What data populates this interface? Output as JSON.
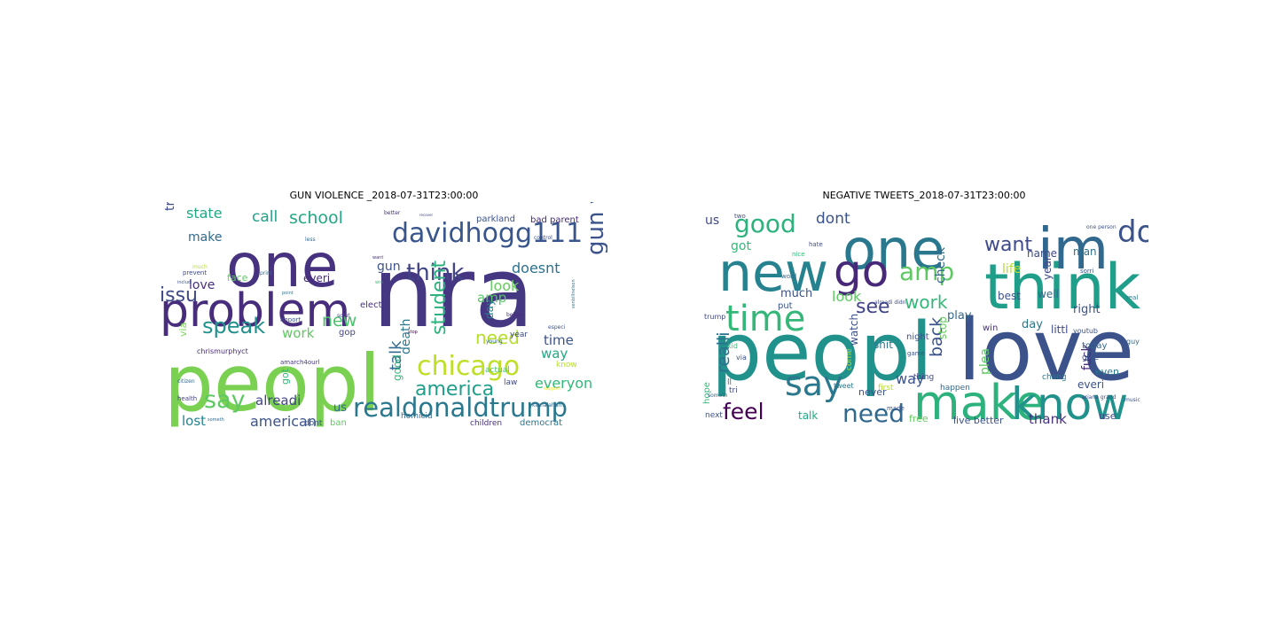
{
  "figure": {
    "panels": [
      {
        "title": "GUN VIOLENCE _2018-07-31T23:00:00",
        "words": [
          {
            "text": "nra",
            "weight": 100,
            "color": "#453781"
          },
          {
            "text": "peopl",
            "weight": 78,
            "color": "#7ad151"
          },
          {
            "text": "one",
            "weight": 70,
            "color": "#46327e"
          },
          {
            "text": "problem",
            "weight": 55,
            "color": "#472d7b"
          },
          {
            "text": "davidhogg111",
            "weight": 32,
            "color": "#39568c"
          },
          {
            "text": "realdonaldtrump",
            "weight": 30,
            "color": "#2a788e"
          },
          {
            "text": "chicago",
            "weight": 30,
            "color": "#bddf26"
          },
          {
            "text": "gun violenc",
            "weight": 26,
            "color": "#3b528b"
          },
          {
            "text": "think",
            "weight": 26,
            "color": "#414487"
          },
          {
            "text": "say",
            "weight": 24,
            "color": "#5ec962"
          },
          {
            "text": "speak",
            "weight": 22,
            "color": "#21918c"
          },
          {
            "text": "student",
            "weight": 20,
            "color": "#2db27d"
          },
          {
            "text": "america",
            "weight": 20,
            "color": "#1f9e89"
          },
          {
            "text": "issu",
            "weight": 20,
            "color": "#3e4989"
          },
          {
            "text": "need",
            "weight": 18,
            "color": "#b5de2b"
          },
          {
            "text": "new",
            "weight": 18,
            "color": "#4ac16d"
          },
          {
            "text": "school",
            "weight": 17,
            "color": "#22a884"
          },
          {
            "text": "talk",
            "weight": 16,
            "color": "#31688e"
          },
          {
            "text": "everyon",
            "weight": 16,
            "color": "#35b779"
          },
          {
            "text": "american",
            "weight": 15,
            "color": "#3b528b"
          },
          {
            "text": "call",
            "weight": 15,
            "color": "#1fa187"
          },
          {
            "text": "look",
            "weight": 15,
            "color": "#65cb5e"
          },
          {
            "text": "doesnt",
            "weight": 14,
            "color": "#2c728e"
          },
          {
            "text": "state",
            "weight": 14,
            "color": "#22a884"
          },
          {
            "text": "alreadi",
            "weight": 14,
            "color": "#414487"
          },
          {
            "text": "amp",
            "weight": 14,
            "color": "#56c667"
          },
          {
            "text": "lost",
            "weight": 14,
            "color": "#26828e"
          },
          {
            "text": "time",
            "weight": 14,
            "color": "#3b528b"
          },
          {
            "text": "make",
            "weight": 13,
            "color": "#30698e"
          },
          {
            "text": "love",
            "weight": 13,
            "color": "#472f7d"
          },
          {
            "text": "trump",
            "weight": 13,
            "color": "#3e4989"
          },
          {
            "text": "way",
            "weight": 13,
            "color": "#22a884"
          },
          {
            "text": "work",
            "weight": 12,
            "color": "#5ec962"
          },
          {
            "text": "gun",
            "weight": 12,
            "color": "#3b528b"
          },
          {
            "text": "death",
            "weight": 12,
            "color": "#2a788e"
          },
          {
            "text": "us",
            "weight": 11,
            "color": "#31688e"
          },
          {
            "text": "day",
            "weight": 11,
            "color": "#26828e"
          },
          {
            "text": "everi",
            "weight": 11,
            "color": "#472d7b"
          },
          {
            "text": "good",
            "weight": 10,
            "color": "#35b779"
          },
          {
            "text": "via",
            "weight": 10,
            "color": "#7ad151"
          },
          {
            "text": "face",
            "weight": 10,
            "color": "#5ec962"
          },
          {
            "text": "got",
            "weight": 10,
            "color": "#35b779"
          },
          {
            "text": "parkland",
            "weight": 9,
            "color": "#3b528b"
          },
          {
            "text": "bad parent",
            "weight": 9,
            "color": "#482878"
          },
          {
            "text": "actual",
            "weight": 9,
            "color": "#4ac16d"
          },
          {
            "text": "law",
            "weight": 9,
            "color": "#3e4989"
          },
          {
            "text": "homicid",
            "weight": 9,
            "color": "#31688e"
          },
          {
            "text": "democrat",
            "weight": 9,
            "color": "#2a788e"
          },
          {
            "text": "children",
            "weight": 9,
            "color": "#46327e"
          },
          {
            "text": "ban",
            "weight": 9,
            "color": "#5ec962"
          },
          {
            "text": "gop",
            "weight": 9,
            "color": "#414487"
          },
          {
            "text": "dont",
            "weight": 9,
            "color": "#3b528b"
          },
          {
            "text": "know",
            "weight": 8,
            "color": "#b5de2b"
          },
          {
            "text": "year",
            "weight": 8,
            "color": "#3e4989"
          },
          {
            "text": "elect",
            "weight": 8,
            "color": "#46327e"
          },
          {
            "text": "chrismurphyct",
            "weight": 8,
            "color": "#472d7b"
          },
          {
            "text": "amarch4ourl",
            "weight": 7,
            "color": "#453781"
          },
          {
            "text": "import",
            "weight": 7,
            "color": "#3b528b"
          },
          {
            "text": "health",
            "weight": 7,
            "color": "#433e85"
          },
          {
            "text": "prevent",
            "weight": 7,
            "color": "#3e4989"
          },
          {
            "text": "citizen",
            "weight": 6,
            "color": "#31688e"
          },
          {
            "text": "control",
            "weight": 6,
            "color": "#3b528b"
          },
          {
            "text": "better",
            "weight": 6,
            "color": "#472d7b"
          },
          {
            "text": "less",
            "weight": 6,
            "color": "#31688e"
          },
          {
            "text": "much",
            "weight": 6,
            "color": "#b5de2b"
          },
          {
            "text": "print",
            "weight": 6,
            "color": "#2c728e"
          },
          {
            "text": "kamalaharri",
            "weight": 6,
            "color": "#31688e"
          },
          {
            "text": "especi",
            "weight": 6,
            "color": "#3b528b"
          },
          {
            "text": "believ",
            "weight": 6,
            "color": "#472d7b"
          },
          {
            "text": "solut",
            "weight": 6,
            "color": "#3e4989"
          },
          {
            "text": "win",
            "weight": 5,
            "color": "#35b779"
          },
          {
            "text": "support",
            "weight": 5,
            "color": "#fde725"
          },
          {
            "text": "someth",
            "weight": 5,
            "color": "#31688e"
          },
          {
            "text": "includ",
            "weight": 5,
            "color": "#3b528b"
          },
          {
            "text": "stop",
            "weight": 5,
            "color": "#440154"
          },
          {
            "text": "point",
            "weight": 5,
            "color": "#2a788e"
          },
          {
            "text": "young",
            "weight": 6,
            "color": "#31688e"
          },
          {
            "text": "want",
            "weight": 5,
            "color": "#472d7b"
          },
          {
            "text": "senbillnelson",
            "weight": 5,
            "color": "#2a788e"
          },
          {
            "text": "recover",
            "weight": 4,
            "color": "#3e4989"
          }
        ]
      },
      {
        "title": "NEGATIVE TWEETS_2018-07-31T23:00:00",
        "words": [
          {
            "text": "love",
            "weight": 100,
            "color": "#3b528b"
          },
          {
            "text": "peopl",
            "weight": 95,
            "color": "#21918c"
          },
          {
            "text": "think",
            "weight": 72,
            "color": "#1f9e89"
          },
          {
            "text": "one",
            "weight": 68,
            "color": "#2a788e"
          },
          {
            "text": "im",
            "weight": 66,
            "color": "#31688e"
          },
          {
            "text": "new",
            "weight": 62,
            "color": "#26828e"
          },
          {
            "text": "make",
            "weight": 58,
            "color": "#2db27d"
          },
          {
            "text": "know",
            "weight": 52,
            "color": "#21918c"
          },
          {
            "text": "go",
            "weight": 50,
            "color": "#482878"
          },
          {
            "text": "time",
            "weight": 42,
            "color": "#35b779"
          },
          {
            "text": "say",
            "weight": 40,
            "color": "#2a788e"
          },
          {
            "text": "don",
            "weight": 34,
            "color": "#3b528b"
          },
          {
            "text": "good",
            "weight": 30,
            "color": "#2db27d"
          },
          {
            "text": "amp",
            "weight": 28,
            "color": "#5ec962"
          },
          {
            "text": "need",
            "weight": 28,
            "color": "#31688e"
          },
          {
            "text": "feel",
            "weight": 26,
            "color": "#440154"
          },
          {
            "text": "want",
            "weight": 24,
            "color": "#3e4989"
          },
          {
            "text": "see",
            "weight": 24,
            "color": "#414487"
          },
          {
            "text": "back",
            "weight": 20,
            "color": "#3b528b"
          },
          {
            "text": "work",
            "weight": 20,
            "color": "#35b779"
          },
          {
            "text": "realli",
            "weight": 20,
            "color": "#2c728e"
          },
          {
            "text": "dont",
            "weight": 18,
            "color": "#3b528b"
          },
          {
            "text": "look",
            "weight": 16,
            "color": "#5ec962"
          },
          {
            "text": "thank",
            "weight": 16,
            "color": "#46327e"
          },
          {
            "text": "way",
            "weight": 16,
            "color": "#3b528b"
          },
          {
            "text": "life",
            "weight": 16,
            "color": "#b5de2b"
          },
          {
            "text": "check",
            "weight": 14,
            "color": "#31688e"
          },
          {
            "text": "fuck",
            "weight": 14,
            "color": "#472d7b"
          },
          {
            "text": "plea",
            "weight": 14,
            "color": "#5ec962"
          },
          {
            "text": "got",
            "weight": 14,
            "color": "#35b779"
          },
          {
            "text": "us",
            "weight": 14,
            "color": "#3e4989"
          },
          {
            "text": "much",
            "weight": 13,
            "color": "#3b528b"
          },
          {
            "text": "play",
            "weight": 13,
            "color": "#31688e"
          },
          {
            "text": "day",
            "weight": 13,
            "color": "#2a788e"
          },
          {
            "text": "right",
            "weight": 13,
            "color": "#3b528b"
          },
          {
            "text": "talk",
            "weight": 12,
            "color": "#22a884"
          },
          {
            "text": "well",
            "weight": 12,
            "color": "#31688e"
          },
          {
            "text": "name",
            "weight": 12,
            "color": "#3e4989"
          },
          {
            "text": "man",
            "weight": 12,
            "color": "#2c728e"
          },
          {
            "text": "shit",
            "weight": 12,
            "color": "#2a788e"
          },
          {
            "text": "best",
            "weight": 12,
            "color": "#3b528b"
          },
          {
            "text": "stop",
            "weight": 12,
            "color": "#65cb5e"
          },
          {
            "text": "littl",
            "weight": 12,
            "color": "#3e4989"
          },
          {
            "text": "watch",
            "weight": 12,
            "color": "#3b528b"
          },
          {
            "text": "year",
            "weight": 12,
            "color": "#3e4989"
          },
          {
            "text": "everi",
            "weight": 12,
            "color": "#3b528b"
          },
          {
            "text": "even",
            "weight": 11,
            "color": "#2a788e"
          },
          {
            "text": "live better",
            "weight": 11,
            "color": "#3b528b"
          },
          {
            "text": "use",
            "weight": 11,
            "color": "#3e4989"
          },
          {
            "text": "free",
            "weight": 11,
            "color": "#65cb5e"
          },
          {
            "text": "never",
            "weight": 11,
            "color": "#3b528b"
          },
          {
            "text": "hope",
            "weight": 10,
            "color": "#35b779"
          },
          {
            "text": "today",
            "weight": 10,
            "color": "#31688e"
          },
          {
            "text": "night",
            "weight": 10,
            "color": "#3b528b"
          },
          {
            "text": "win",
            "weight": 10,
            "color": "#46327e"
          },
          {
            "text": "put",
            "weight": 10,
            "color": "#3b528b"
          },
          {
            "text": "thing",
            "weight": 9,
            "color": "#3e4989"
          },
          {
            "text": "happen",
            "weight": 9,
            "color": "#31688e"
          },
          {
            "text": "give",
            "weight": 9,
            "color": "#3b528b"
          },
          {
            "text": "chang",
            "weight": 9,
            "color": "#2a788e"
          },
          {
            "text": "first",
            "weight": 9,
            "color": "#b5de2b"
          },
          {
            "text": "come",
            "weight": 9,
            "color": "#b5de2b"
          },
          {
            "text": "next",
            "weight": 9,
            "color": "#3b528b"
          },
          {
            "text": "tri",
            "weight": 9,
            "color": "#3e4989"
          },
          {
            "text": "ll",
            "weight": 9,
            "color": "#31688e"
          },
          {
            "text": "kid",
            "weight": 8,
            "color": "#35b779"
          },
          {
            "text": "via",
            "weight": 8,
            "color": "#3b528b"
          },
          {
            "text": "trump",
            "weight": 8,
            "color": "#3e4989"
          },
          {
            "text": "made",
            "weight": 7,
            "color": "#3b528b"
          },
          {
            "text": "guy",
            "weight": 8,
            "color": "#31688e"
          },
          {
            "text": "tweet",
            "weight": 8,
            "color": "#2a788e"
          },
          {
            "text": "youtub",
            "weight": 8,
            "color": "#3b528b"
          },
          {
            "text": "two",
            "weight": 7,
            "color": "#3e4989"
          },
          {
            "text": "nice",
            "weight": 7,
            "color": "#35b779"
          },
          {
            "text": "game",
            "weight": 7,
            "color": "#3b528b"
          },
          {
            "text": "hate",
            "weight": 7,
            "color": "#3e4989"
          },
          {
            "text": "sorri",
            "weight": 7,
            "color": "#3b528b"
          },
          {
            "text": "word",
            "weight": 7,
            "color": "#31688e"
          },
          {
            "text": "real",
            "weight": 7,
            "color": "#2a788e"
          },
          {
            "text": "music",
            "weight": 6,
            "color": "#3b528b"
          },
          {
            "text": "ariana grand",
            "weight": 6,
            "color": "#3e4989"
          },
          {
            "text": "one person",
            "weight": 6,
            "color": "#3b528b"
          },
          {
            "text": "someth",
            "weight": 6,
            "color": "#31688e"
          },
          {
            "text": "alreadi didn",
            "weight": 6,
            "color": "#3e4989"
          }
        ]
      }
    ]
  }
}
